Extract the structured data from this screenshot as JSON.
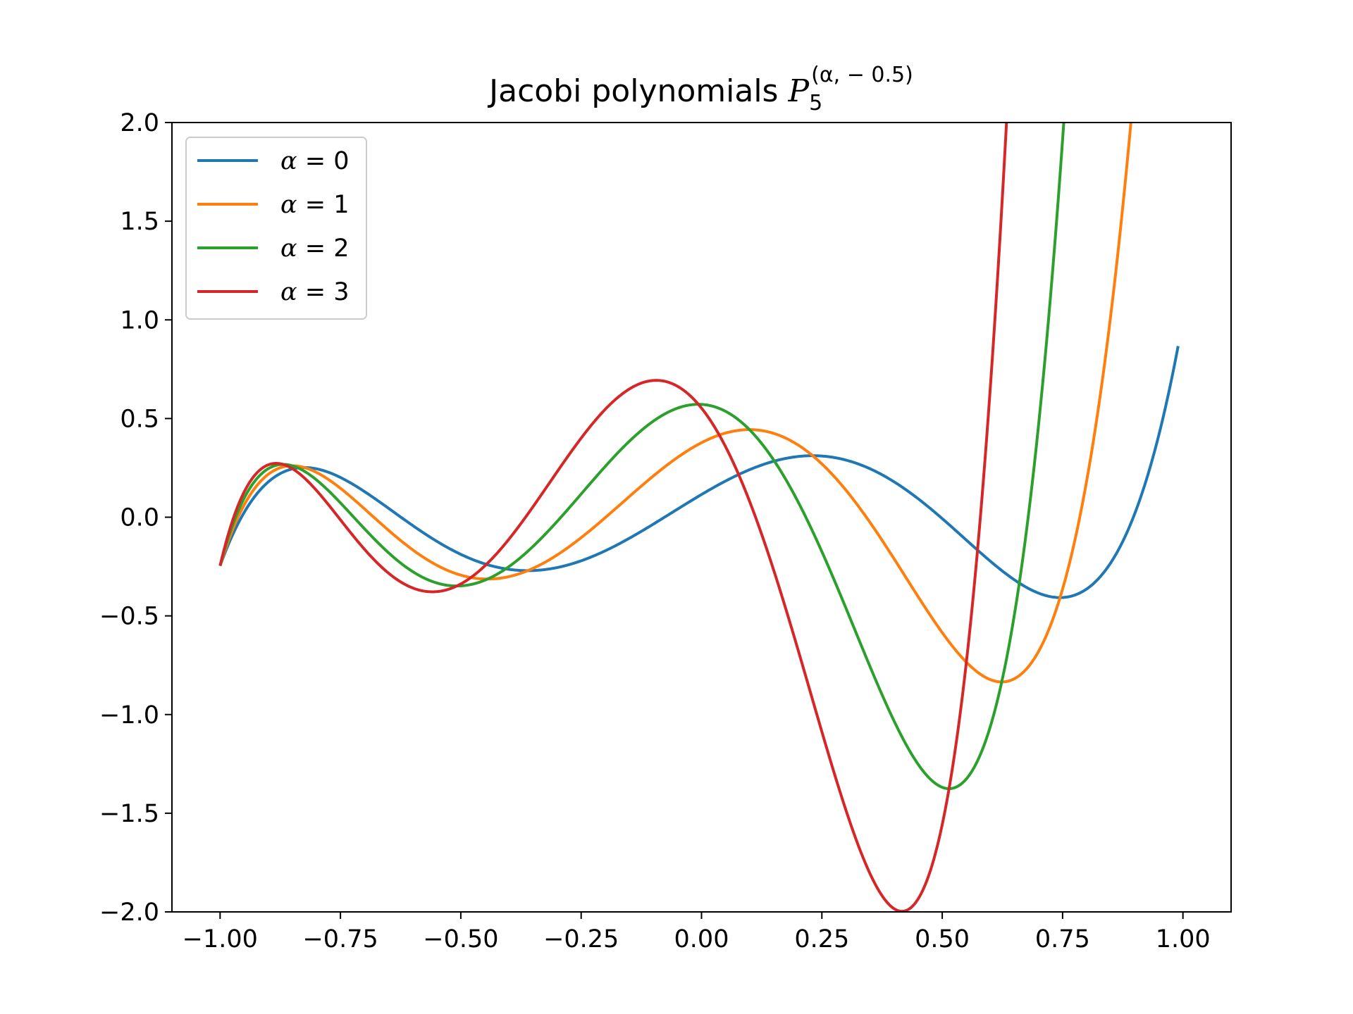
{
  "chart_data": {
    "type": "line",
    "title_main": "Jacobi polynomials ",
    "title_symbol": "P",
    "title_subscript": "5",
    "title_superscript": "(α, − 0.5)",
    "xlim": [
      -1.1,
      1.1
    ],
    "ylim": [
      -2.0,
      2.0
    ],
    "x_ticks": [
      -1.0,
      -0.75,
      -0.5,
      -0.25,
      0.0,
      0.25,
      0.5,
      0.75,
      1.0
    ],
    "x_tick_labels": [
      "−1.00",
      "−0.75",
      "−0.50",
      "−0.25",
      "0.00",
      "0.25",
      "0.50",
      "0.75",
      "1.00"
    ],
    "y_ticks": [
      -2.0,
      -1.5,
      -1.0,
      -0.5,
      0.0,
      0.5,
      1.0,
      1.5,
      2.0
    ],
    "y_tick_labels": [
      "−2.0",
      "−1.5",
      "−1.0",
      "−0.5",
      "0.0",
      "0.5",
      "1.0",
      "1.5",
      "2.0"
    ],
    "x_range": [
      -1.0,
      0.99
    ],
    "beta": -0.5,
    "degree": 5,
    "grid": false,
    "legend_position": "upper-left",
    "series": [
      {
        "name": "α = 0",
        "alpha_symbol": "α",
        "eq": " = 0",
        "alpha": 0,
        "color": "#1f77b4"
      },
      {
        "name": "α = 1",
        "alpha_symbol": "α",
        "eq": " = 1",
        "alpha": 1,
        "color": "#ff7f0e"
      },
      {
        "name": "α = 2",
        "alpha_symbol": "α",
        "eq": " = 2",
        "alpha": 2,
        "color": "#2ca02c"
      },
      {
        "name": "α = 3",
        "alpha_symbol": "α",
        "eq": " = 3",
        "alpha": 3,
        "color": "#d62728"
      }
    ]
  }
}
